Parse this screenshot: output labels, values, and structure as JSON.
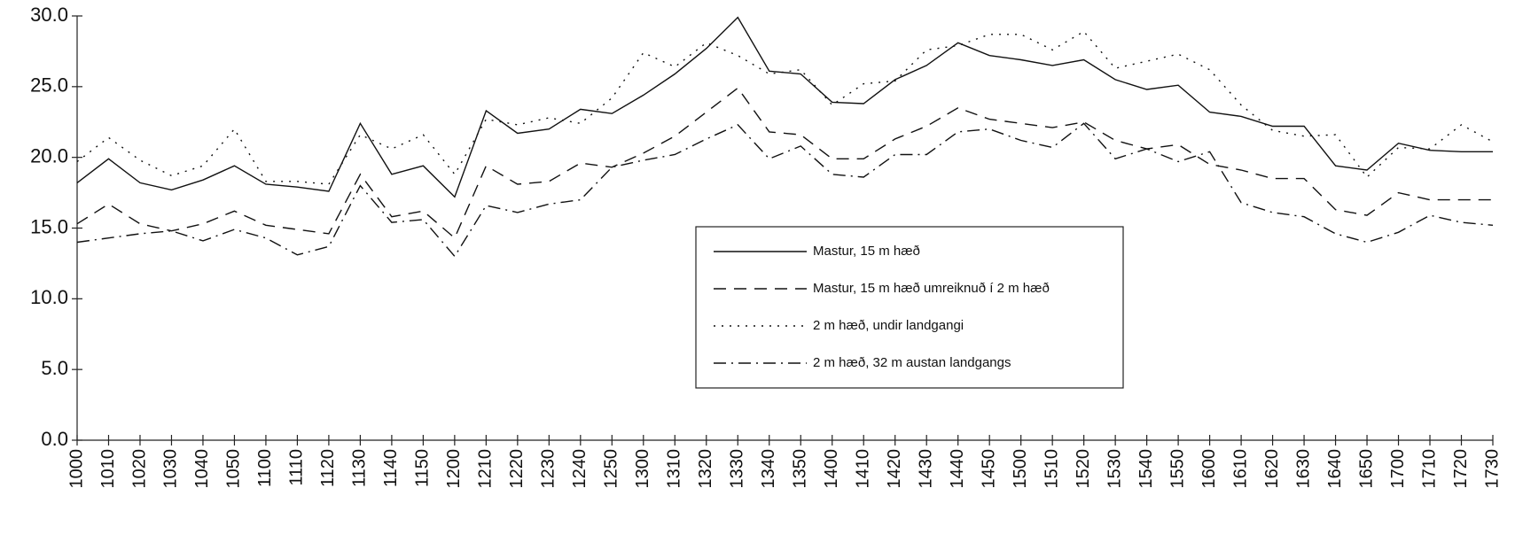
{
  "chart_data": {
    "type": "line",
    "categories": [
      "1000",
      "1010",
      "1020",
      "1030",
      "1040",
      "1050",
      "1100",
      "1110",
      "1120",
      "1130",
      "1140",
      "1150",
      "1200",
      "1210",
      "1220",
      "1230",
      "1240",
      "1250",
      "1300",
      "1310",
      "1320",
      "1330",
      "1340",
      "1350",
      "1400",
      "1410",
      "1420",
      "1430",
      "1440",
      "1450",
      "1500",
      "1510",
      "1520",
      "1530",
      "1540",
      "1550",
      "1600",
      "1610",
      "1620",
      "1630",
      "1640",
      "1650",
      "1700",
      "1710",
      "1720",
      "1730"
    ],
    "series": [
      {
        "name": "Mastur, 15 m hæð",
        "color": "#111111",
        "dash": "none",
        "values": [
          18.2,
          19.9,
          18.2,
          17.7,
          18.4,
          19.4,
          18.1,
          17.9,
          17.6,
          22.4,
          18.8,
          19.4,
          17.2,
          23.3,
          21.7,
          22.0,
          23.4,
          23.1,
          24.4,
          25.9,
          27.7,
          29.9,
          26.1,
          25.9,
          23.9,
          23.8,
          25.5,
          26.5,
          28.1,
          27.2,
          26.9,
          26.5,
          26.9,
          25.5,
          24.8,
          25.1,
          23.2,
          22.9,
          22.2,
          22.2,
          19.4,
          19.1,
          21.0,
          20.5,
          20.4,
          20.4
        ]
      },
      {
        "name": "Mastur, 15 m hæð umreiknuð í 2 m hæð",
        "color": "#111111",
        "dash": "14,9",
        "values": [
          15.3,
          16.7,
          15.3,
          14.8,
          15.3,
          16.2,
          15.2,
          14.9,
          14.6,
          18.8,
          15.8,
          16.2,
          14.3,
          19.4,
          18.1,
          18.3,
          19.6,
          19.3,
          20.3,
          21.5,
          23.2,
          24.9,
          21.8,
          21.6,
          19.9,
          19.9,
          21.3,
          22.2,
          23.5,
          22.7,
          22.4,
          22.1,
          22.5,
          21.2,
          20.6,
          20.9,
          19.5,
          19.1,
          18.5,
          18.5,
          16.3,
          15.9,
          17.5,
          17.0,
          17.0,
          17.0
        ]
      },
      {
        "name": "2 m hæð, undir landgangi",
        "color": "#111111",
        "dash": "2,7",
        "values": [
          19.7,
          21.4,
          19.8,
          18.7,
          19.4,
          22.0,
          18.3,
          18.3,
          18.1,
          21.6,
          20.6,
          21.6,
          18.8,
          22.7,
          22.3,
          22.8,
          22.4,
          24.2,
          27.4,
          26.4,
          28.1,
          27.2,
          25.9,
          26.2,
          23.7,
          25.2,
          25.4,
          27.6,
          27.9,
          28.7,
          28.7,
          27.6,
          28.9,
          26.3,
          26.8,
          27.3,
          26.2,
          23.7,
          21.9,
          21.5,
          21.6,
          18.6,
          20.7,
          20.6,
          22.3,
          21.1
        ]
      },
      {
        "name": "2 m hæð, 32 m austan landgangs",
        "color": "#111111",
        "dash": "14,6,2,6",
        "values": [
          14.0,
          14.3,
          14.6,
          14.8,
          14.1,
          14.9,
          14.3,
          13.1,
          13.7,
          18.0,
          15.4,
          15.6,
          13.0,
          16.6,
          16.1,
          16.7,
          17.0,
          19.3,
          19.8,
          20.2,
          21.3,
          22.3,
          19.9,
          20.8,
          18.8,
          18.6,
          20.2,
          20.2,
          21.8,
          22.0,
          21.2,
          20.7,
          22.4,
          19.9,
          20.6,
          19.7,
          20.4,
          16.8,
          16.1,
          15.8,
          14.6,
          14.0,
          14.7,
          15.9,
          15.4,
          15.2
        ]
      }
    ],
    "ylim": [
      0,
      30
    ],
    "yticks": [
      {
        "value": 0,
        "label": "0.0"
      },
      {
        "value": 5,
        "label": "5.0"
      },
      {
        "value": 10,
        "label": "10.0"
      },
      {
        "value": 15,
        "label": "15.0"
      },
      {
        "value": 20,
        "label": "20.0"
      },
      {
        "value": 25,
        "label": "25.0"
      },
      {
        "value": 30,
        "label": "30.0"
      }
    ],
    "grid": false
  }
}
